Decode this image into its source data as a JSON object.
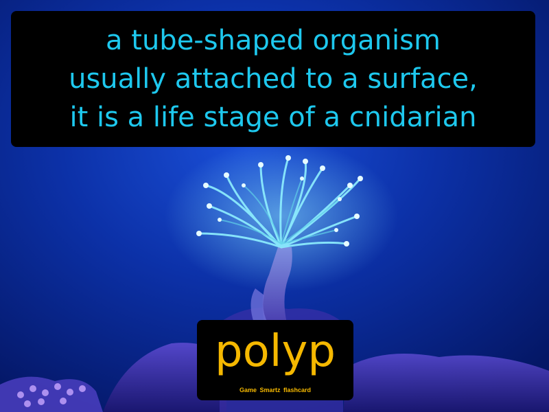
{
  "definition": "a tube-shaped organism\nusually attached to a  surface,\nit is a life stage of a cnidarian",
  "term": "polyp",
  "brand": "Game  Smartz  flashcard",
  "colors": {
    "definition_text": "#1ec8ee",
    "term_text": "#f5b800",
    "panel_background": "#000000",
    "water_background": "#0a2a8a"
  },
  "image_subject": "polyp coral photo"
}
